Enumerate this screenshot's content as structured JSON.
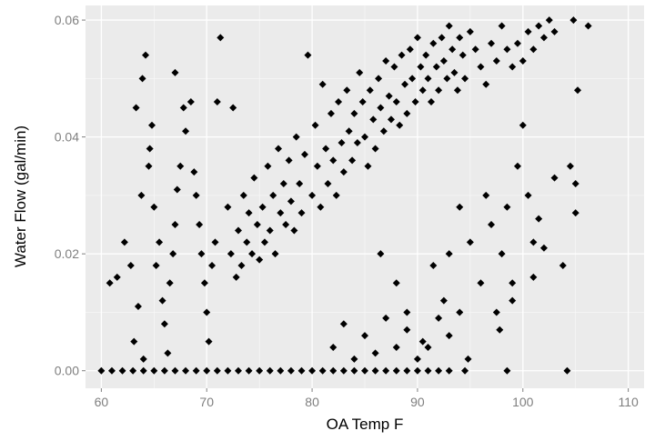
{
  "chart_data": {
    "type": "scatter",
    "title": "",
    "xlabel": "OA Temp F",
    "ylabel": "Water Flow (gal/min)",
    "xlim": [
      58.5,
      111.5
    ],
    "ylim": [
      -0.003,
      0.0625
    ],
    "x_ticks": [
      {
        "value": 60,
        "label": "60"
      },
      {
        "value": 70,
        "label": "70"
      },
      {
        "value": 80,
        "label": "80"
      },
      {
        "value": 90,
        "label": "90"
      },
      {
        "value": 100,
        "label": "100"
      },
      {
        "value": 110,
        "label": "110"
      }
    ],
    "y_ticks": [
      {
        "value": 0.0,
        "label": "0.00"
      },
      {
        "value": 0.02,
        "label": "0.02"
      },
      {
        "value": 0.04,
        "label": "0.04"
      },
      {
        "value": 0.06,
        "label": "0.06"
      }
    ],
    "grid": true,
    "background_color": "#ebebeb",
    "grid_color": "#ffffff",
    "point_color": "#000000",
    "points": [
      [
        60.0,
        0.0
      ],
      [
        61.0,
        0.0
      ],
      [
        62.0,
        0.0
      ],
      [
        63.0,
        0.0
      ],
      [
        64.0,
        0.0
      ],
      [
        65.0,
        0.0
      ],
      [
        66.0,
        0.0
      ],
      [
        67.0,
        0.0
      ],
      [
        68.0,
        0.0
      ],
      [
        69.0,
        0.0
      ],
      [
        70.0,
        0.0
      ],
      [
        71.0,
        0.0
      ],
      [
        72.0,
        0.0
      ],
      [
        73.0,
        0.0
      ],
      [
        74.0,
        0.0
      ],
      [
        75.0,
        0.0
      ],
      [
        76.0,
        0.0
      ],
      [
        77.0,
        0.0
      ],
      [
        78.0,
        0.0
      ],
      [
        79.0,
        0.0
      ],
      [
        80.0,
        0.0
      ],
      [
        81.0,
        0.0
      ],
      [
        82.0,
        0.0
      ],
      [
        83.0,
        0.0
      ],
      [
        84.0,
        0.0
      ],
      [
        85.0,
        0.0
      ],
      [
        86.0,
        0.0
      ],
      [
        87.0,
        0.0
      ],
      [
        88.0,
        0.0
      ],
      [
        89.0,
        0.0
      ],
      [
        90.0,
        0.0
      ],
      [
        91.0,
        0.0
      ],
      [
        92.0,
        0.0
      ],
      [
        93.0,
        0.0
      ],
      [
        94.5,
        0.0
      ],
      [
        98.5,
        0.0
      ],
      [
        104.2,
        0.0
      ],
      [
        60.8,
        0.015
      ],
      [
        61.5,
        0.016
      ],
      [
        62.2,
        0.022
      ],
      [
        62.8,
        0.018
      ],
      [
        63.5,
        0.011
      ],
      [
        63.1,
        0.005
      ],
      [
        64.0,
        0.002
      ],
      [
        63.8,
        0.03
      ],
      [
        64.5,
        0.035
      ],
      [
        64.2,
        0.054
      ],
      [
        63.9,
        0.05
      ],
      [
        63.3,
        0.045
      ],
      [
        64.8,
        0.042
      ],
      [
        64.6,
        0.038
      ],
      [
        65.0,
        0.028
      ],
      [
        65.5,
        0.022
      ],
      [
        65.2,
        0.018
      ],
      [
        65.8,
        0.012
      ],
      [
        66.0,
        0.008
      ],
      [
        66.3,
        0.003
      ],
      [
        66.5,
        0.015
      ],
      [
        66.8,
        0.02
      ],
      [
        67.0,
        0.025
      ],
      [
        67.2,
        0.031
      ],
      [
        67.5,
        0.035
      ],
      [
        67.8,
        0.045
      ],
      [
        67.0,
        0.051
      ],
      [
        68.5,
        0.046
      ],
      [
        68.0,
        0.041
      ],
      [
        68.8,
        0.034
      ],
      [
        69.0,
        0.03
      ],
      [
        69.3,
        0.025
      ],
      [
        69.5,
        0.02
      ],
      [
        69.8,
        0.015
      ],
      [
        70.0,
        0.01
      ],
      [
        70.2,
        0.005
      ],
      [
        70.5,
        0.018
      ],
      [
        70.8,
        0.022
      ],
      [
        71.0,
        0.046
      ],
      [
        71.3,
        0.057
      ],
      [
        72.5,
        0.045
      ],
      [
        72.0,
        0.028
      ],
      [
        72.3,
        0.02
      ],
      [
        72.8,
        0.016
      ],
      [
        73.0,
        0.024
      ],
      [
        73.3,
        0.018
      ],
      [
        73.5,
        0.03
      ],
      [
        73.8,
        0.022
      ],
      [
        74.0,
        0.027
      ],
      [
        74.3,
        0.02
      ],
      [
        74.5,
        0.033
      ],
      [
        74.8,
        0.025
      ],
      [
        75.0,
        0.019
      ],
      [
        75.3,
        0.028
      ],
      [
        75.5,
        0.022
      ],
      [
        75.8,
        0.035
      ],
      [
        76.0,
        0.024
      ],
      [
        76.3,
        0.03
      ],
      [
        76.5,
        0.02
      ],
      [
        76.8,
        0.038
      ],
      [
        77.0,
        0.027
      ],
      [
        77.3,
        0.032
      ],
      [
        77.5,
        0.025
      ],
      [
        77.8,
        0.036
      ],
      [
        78.0,
        0.029
      ],
      [
        78.3,
        0.024
      ],
      [
        78.5,
        0.04
      ],
      [
        78.8,
        0.032
      ],
      [
        79.0,
        0.027
      ],
      [
        79.3,
        0.037
      ],
      [
        79.6,
        0.054
      ],
      [
        80.0,
        0.03
      ],
      [
        80.3,
        0.042
      ],
      [
        80.5,
        0.035
      ],
      [
        80.8,
        0.028
      ],
      [
        81.0,
        0.049
      ],
      [
        81.3,
        0.038
      ],
      [
        81.5,
        0.032
      ],
      [
        81.8,
        0.044
      ],
      [
        82.0,
        0.036
      ],
      [
        82.3,
        0.03
      ],
      [
        82.5,
        0.046
      ],
      [
        82.8,
        0.039
      ],
      [
        83.0,
        0.034
      ],
      [
        83.3,
        0.048
      ],
      [
        83.5,
        0.041
      ],
      [
        83.8,
        0.036
      ],
      [
        84.0,
        0.044
      ],
      [
        84.3,
        0.039
      ],
      [
        84.5,
        0.051
      ],
      [
        84.8,
        0.046
      ],
      [
        85.0,
        0.04
      ],
      [
        85.3,
        0.035
      ],
      [
        85.5,
        0.048
      ],
      [
        85.8,
        0.043
      ],
      [
        86.0,
        0.038
      ],
      [
        86.3,
        0.05
      ],
      [
        86.5,
        0.045
      ],
      [
        86.8,
        0.041
      ],
      [
        87.0,
        0.053
      ],
      [
        87.3,
        0.047
      ],
      [
        87.5,
        0.043
      ],
      [
        87.8,
        0.052
      ],
      [
        88.0,
        0.046
      ],
      [
        88.3,
        0.042
      ],
      [
        88.5,
        0.054
      ],
      [
        88.8,
        0.049
      ],
      [
        89.0,
        0.044
      ],
      [
        89.3,
        0.055
      ],
      [
        89.5,
        0.05
      ],
      [
        89.8,
        0.046
      ],
      [
        90.0,
        0.057
      ],
      [
        90.3,
        0.052
      ],
      [
        90.5,
        0.048
      ],
      [
        90.8,
        0.054
      ],
      [
        91.0,
        0.05
      ],
      [
        91.3,
        0.046
      ],
      [
        91.5,
        0.056
      ],
      [
        91.8,
        0.052
      ],
      [
        92.0,
        0.048
      ],
      [
        92.3,
        0.057
      ],
      [
        92.5,
        0.053
      ],
      [
        92.8,
        0.05
      ],
      [
        93.0,
        0.059
      ],
      [
        93.3,
        0.055
      ],
      [
        93.5,
        0.051
      ],
      [
        93.8,
        0.048
      ],
      [
        94.0,
        0.057
      ],
      [
        94.3,
        0.054
      ],
      [
        94.5,
        0.05
      ],
      [
        95.0,
        0.058
      ],
      [
        95.5,
        0.055
      ],
      [
        96.0,
        0.052
      ],
      [
        96.5,
        0.049
      ],
      [
        97.0,
        0.056
      ],
      [
        97.5,
        0.053
      ],
      [
        98.0,
        0.059
      ],
      [
        98.5,
        0.055
      ],
      [
        99.0,
        0.052
      ],
      [
        99.5,
        0.056
      ],
      [
        100.0,
        0.053
      ],
      [
        100.5,
        0.058
      ],
      [
        101.0,
        0.055
      ],
      [
        101.5,
        0.059
      ],
      [
        102.0,
        0.057
      ],
      [
        102.5,
        0.06
      ],
      [
        103.0,
        0.058
      ],
      [
        104.8,
        0.06
      ],
      [
        106.2,
        0.059
      ],
      [
        105.2,
        0.048
      ],
      [
        86.5,
        0.02
      ],
      [
        88.0,
        0.015
      ],
      [
        89.0,
        0.01
      ],
      [
        90.5,
        0.005
      ],
      [
        91.5,
        0.018
      ],
      [
        92.5,
        0.012
      ],
      [
        93.0,
        0.02
      ],
      [
        94.0,
        0.028
      ],
      [
        95.0,
        0.022
      ],
      [
        96.0,
        0.015
      ],
      [
        96.5,
        0.03
      ],
      [
        97.0,
        0.025
      ],
      [
        97.5,
        0.01
      ],
      [
        98.0,
        0.02
      ],
      [
        98.5,
        0.028
      ],
      [
        99.0,
        0.015
      ],
      [
        99.5,
        0.035
      ],
      [
        100.0,
        0.042
      ],
      [
        100.5,
        0.03
      ],
      [
        101.0,
        0.016
      ],
      [
        101.5,
        0.026
      ],
      [
        102.0,
        0.021
      ],
      [
        103.0,
        0.033
      ],
      [
        103.8,
        0.018
      ],
      [
        104.5,
        0.035
      ],
      [
        105.0,
        0.027
      ],
      [
        105.0,
        0.032
      ],
      [
        101.0,
        0.022
      ],
      [
        99.0,
        0.012
      ],
      [
        97.8,
        0.007
      ],
      [
        82.0,
        0.004
      ],
      [
        83.0,
        0.008
      ],
      [
        84.0,
        0.002
      ],
      [
        85.0,
        0.006
      ],
      [
        86.0,
        0.003
      ],
      [
        87.0,
        0.009
      ],
      [
        88.0,
        0.004
      ],
      [
        89.0,
        0.007
      ],
      [
        90.0,
        0.002
      ],
      [
        91.0,
        0.004
      ],
      [
        92.0,
        0.009
      ],
      [
        93.0,
        0.006
      ],
      [
        94.0,
        0.01
      ],
      [
        94.8,
        0.002
      ]
    ]
  }
}
